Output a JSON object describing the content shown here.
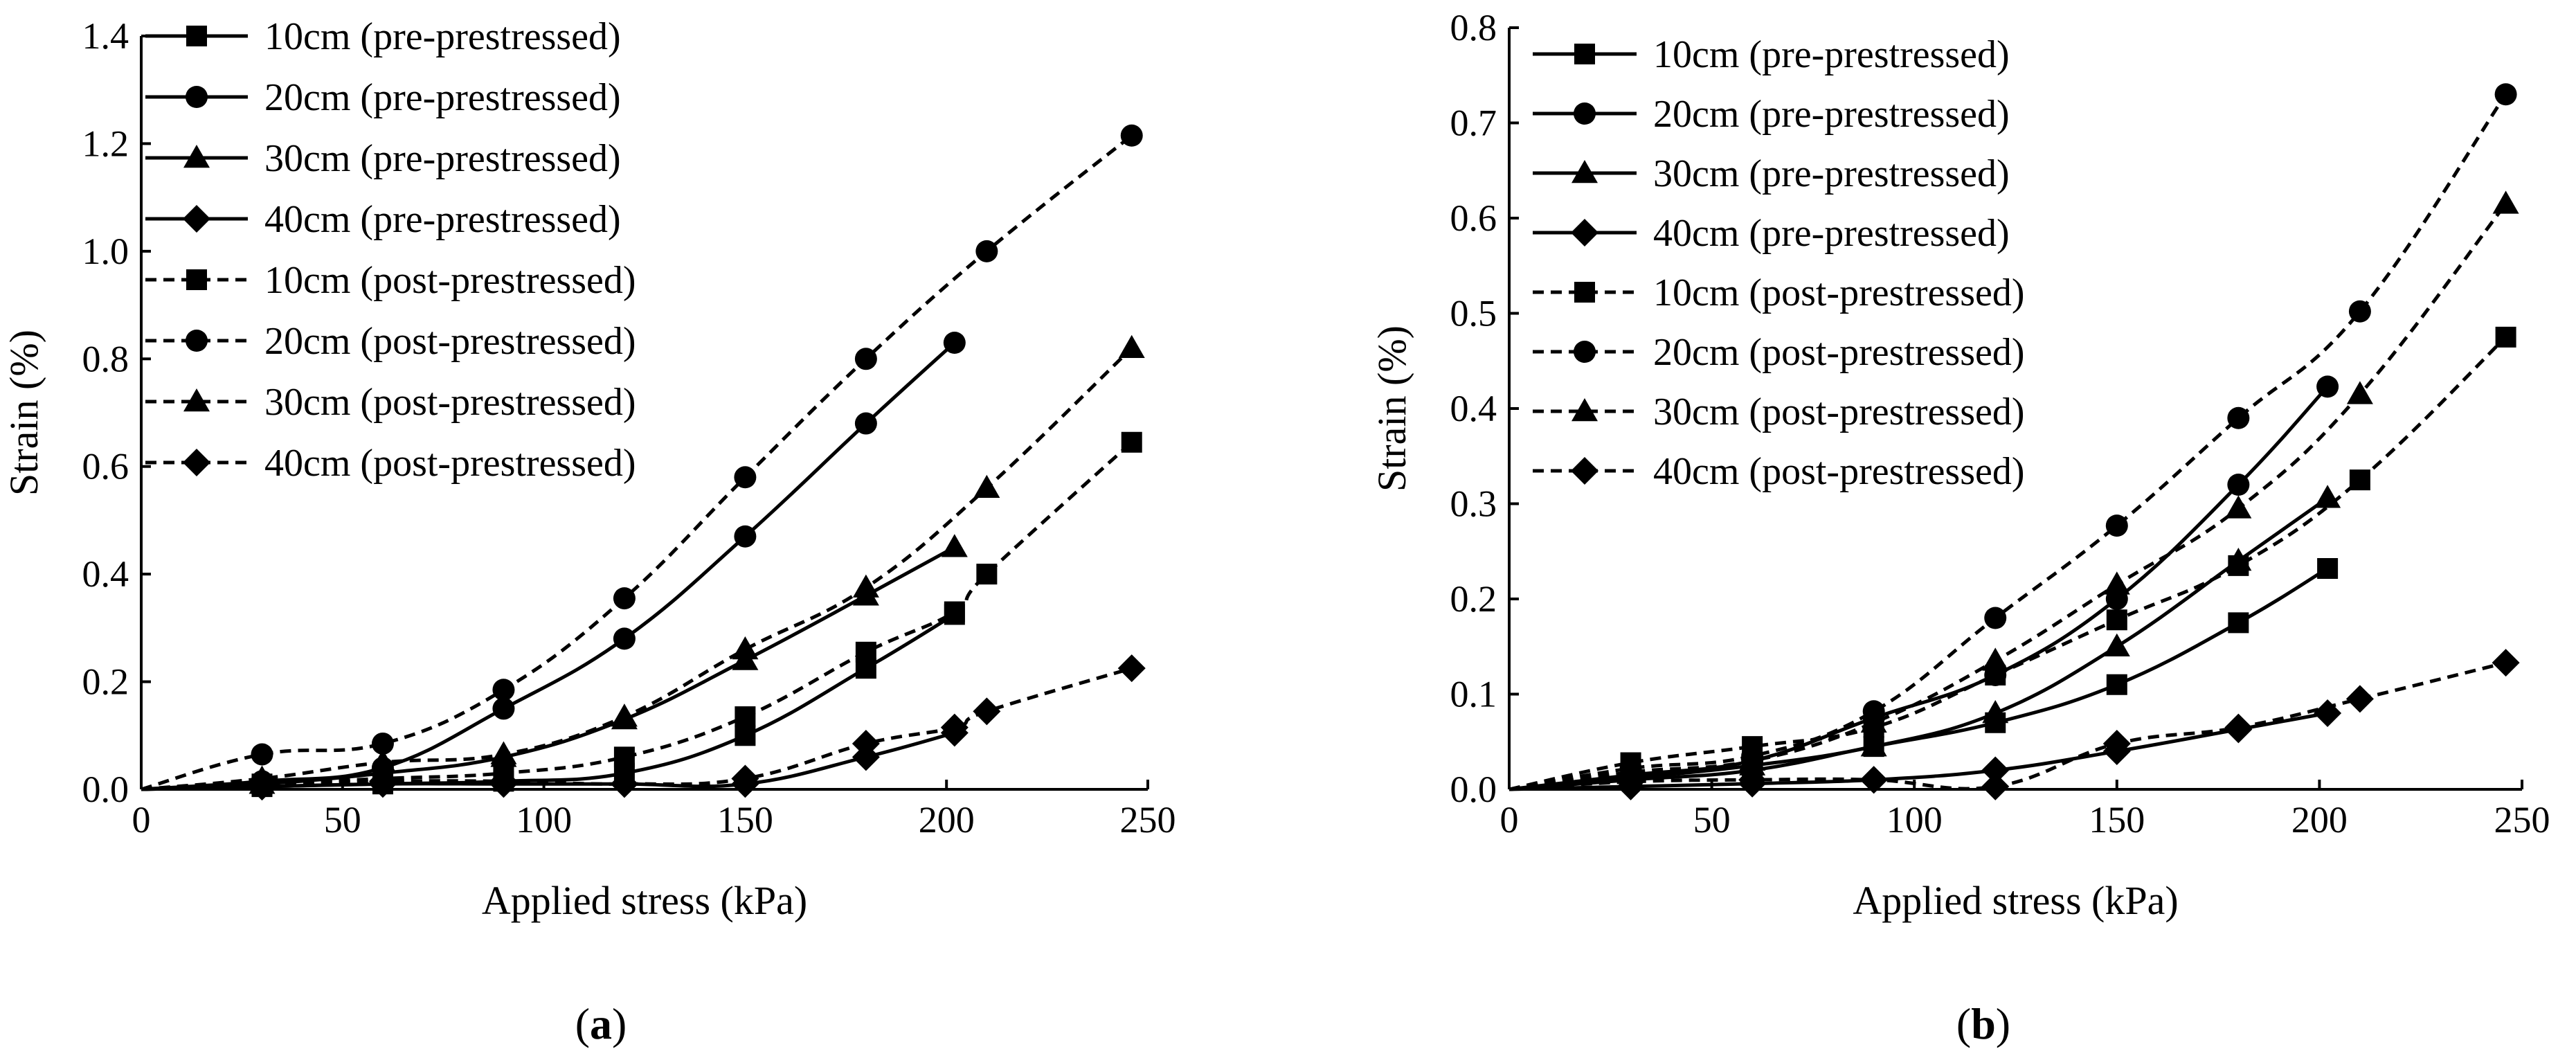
{
  "chart_data": [
    {
      "panel_label": "a",
      "type": "line",
      "xlabel": "Applied stress (kPa)",
      "ylabel": "Strain (%)",
      "xlim": [
        0,
        250
      ],
      "ylim": [
        0,
        1.4
      ],
      "xticks": [
        0,
        50,
        100,
        150,
        200,
        250
      ],
      "xtick_labels": [
        "0",
        "50",
        "100",
        "150",
        "200",
        "250"
      ],
      "yticks": [
        0,
        0.2,
        0.4,
        0.6,
        0.8,
        1.0,
        1.2,
        1.4
      ],
      "ytick_labels": [
        "0.0",
        "0.2",
        "0.4",
        "0.6",
        "0.8",
        "1.0",
        "1.2",
        "1.4"
      ],
      "legend_position": "top-left",
      "series": [
        {
          "name": "10cm (pre-prestressed)",
          "marker": "square",
          "line": "solid",
          "x": [
            0,
            30,
            60,
            90,
            120,
            150,
            180,
            202
          ],
          "y": [
            0,
            0.005,
            0.01,
            0.015,
            0.03,
            0.1,
            0.225,
            0.325
          ]
        },
        {
          "name": "20cm (pre-prestressed)",
          "marker": "circle",
          "line": "solid",
          "x": [
            0,
            30,
            60,
            90,
            120,
            150,
            180,
            202
          ],
          "y": [
            0,
            0.015,
            0.04,
            0.15,
            0.28,
            0.47,
            0.68,
            0.83
          ]
        },
        {
          "name": "30cm (pre-prestressed)",
          "marker": "triangle",
          "line": "solid",
          "x": [
            0,
            30,
            60,
            90,
            120,
            150,
            180,
            202
          ],
          "y": [
            0,
            0.01,
            0.03,
            0.06,
            0.13,
            0.24,
            0.36,
            0.45
          ]
        },
        {
          "name": "40cm (pre-prestressed)",
          "marker": "diamond",
          "line": "solid",
          "x": [
            0,
            30,
            60,
            90,
            120,
            150,
            180,
            202
          ],
          "y": [
            0,
            0.005,
            0.01,
            0.01,
            0.01,
            0.01,
            0.06,
            0.105
          ]
        },
        {
          "name": "10cm (post-prestressed)",
          "marker": "square",
          "line": "dashed",
          "x": [
            0,
            30,
            60,
            90,
            120,
            150,
            180,
            202,
            210,
            246
          ],
          "y": [
            0,
            0.01,
            0.02,
            0.03,
            0.06,
            0.135,
            0.255,
            0.33,
            0.4,
            0.645
          ]
        },
        {
          "name": "20cm (post-prestressed)",
          "marker": "circle",
          "line": "dashed",
          "x": [
            0,
            30,
            60,
            90,
            120,
            150,
            180,
            210,
            246
          ],
          "y": [
            0,
            0.065,
            0.085,
            0.185,
            0.355,
            0.58,
            0.8,
            1.0,
            1.215
          ]
        },
        {
          "name": "30cm (post-prestressed)",
          "marker": "triangle",
          "line": "dashed",
          "x": [
            0,
            30,
            60,
            90,
            120,
            150,
            180,
            210,
            246
          ],
          "y": [
            0,
            0.02,
            0.05,
            0.065,
            0.135,
            0.26,
            0.375,
            0.56,
            0.82
          ]
        },
        {
          "name": "40cm (post-prestressed)",
          "marker": "diamond",
          "line": "dashed",
          "x": [
            0,
            30,
            60,
            90,
            120,
            150,
            180,
            202,
            210,
            246
          ],
          "y": [
            0,
            0.01,
            0.015,
            0.015,
            0.01,
            0.02,
            0.085,
            0.115,
            0.145,
            0.225
          ]
        }
      ]
    },
    {
      "panel_label": "b",
      "type": "line",
      "xlabel": "Applied stress (kPa)",
      "ylabel": "Strain (%)",
      "xlim": [
        0,
        250
      ],
      "ylim": [
        0,
        0.8
      ],
      "xticks": [
        0,
        50,
        100,
        150,
        200,
        250
      ],
      "xtick_labels": [
        "0",
        "50",
        "100",
        "150",
        "200",
        "250"
      ],
      "yticks": [
        0,
        0.1,
        0.2,
        0.3,
        0.4,
        0.5,
        0.6,
        0.7,
        0.8
      ],
      "ytick_labels": [
        "0.0",
        "0.1",
        "0.2",
        "0.3",
        "0.4",
        "0.5",
        "0.6",
        "0.7",
        "0.8"
      ],
      "legend_position": "top-left",
      "series": [
        {
          "name": "10cm (pre-prestressed)",
          "marker": "square",
          "line": "solid",
          "x": [
            0,
            30,
            60,
            90,
            120,
            150,
            180,
            202
          ],
          "y": [
            0,
            0.01,
            0.02,
            0.045,
            0.07,
            0.11,
            0.175,
            0.232
          ]
        },
        {
          "name": "20cm (pre-prestressed)",
          "marker": "circle",
          "line": "solid",
          "x": [
            0,
            30,
            60,
            90,
            120,
            150,
            180,
            202
          ],
          "y": [
            0,
            0.015,
            0.03,
            0.075,
            0.12,
            0.2,
            0.32,
            0.423
          ]
        },
        {
          "name": "30cm (pre-prestressed)",
          "marker": "triangle",
          "line": "solid",
          "x": [
            0,
            30,
            60,
            90,
            120,
            150,
            180,
            202
          ],
          "y": [
            0,
            0.012,
            0.025,
            0.045,
            0.08,
            0.15,
            0.24,
            0.306
          ]
        },
        {
          "name": "40cm (pre-prestressed)",
          "marker": "diamond",
          "line": "solid",
          "x": [
            0,
            30,
            60,
            90,
            120,
            150,
            180,
            202
          ],
          "y": [
            0,
            0.003,
            0.006,
            0.01,
            0.02,
            0.04,
            0.063,
            0.08
          ]
        },
        {
          "name": "10cm (post-prestressed)",
          "marker": "square",
          "line": "dashed",
          "x": [
            0,
            30,
            60,
            90,
            120,
            150,
            180,
            210,
            246
          ],
          "y": [
            0,
            0.028,
            0.045,
            0.065,
            0.12,
            0.178,
            0.235,
            0.325,
            0.475
          ]
        },
        {
          "name": "20cm (post-prestressed)",
          "marker": "circle",
          "line": "dashed",
          "x": [
            0,
            30,
            60,
            90,
            120,
            150,
            180,
            210,
            246
          ],
          "y": [
            0,
            0.022,
            0.035,
            0.082,
            0.18,
            0.277,
            0.39,
            0.502,
            0.73
          ]
        },
        {
          "name": "30cm (post-prestressed)",
          "marker": "triangle",
          "line": "dashed",
          "x": [
            0,
            30,
            60,
            90,
            120,
            150,
            180,
            210,
            246
          ],
          "y": [
            0,
            0.018,
            0.03,
            0.07,
            0.135,
            0.215,
            0.295,
            0.415,
            0.615
          ]
        },
        {
          "name": "40cm (post-prestressed)",
          "marker": "diamond",
          "line": "dashed",
          "x": [
            0,
            30,
            60,
            90,
            120,
            150,
            180,
            210,
            246
          ],
          "y": [
            0,
            0.008,
            0.01,
            0.01,
            0.003,
            0.048,
            0.065,
            0.095,
            0.133
          ]
        }
      ]
    }
  ]
}
